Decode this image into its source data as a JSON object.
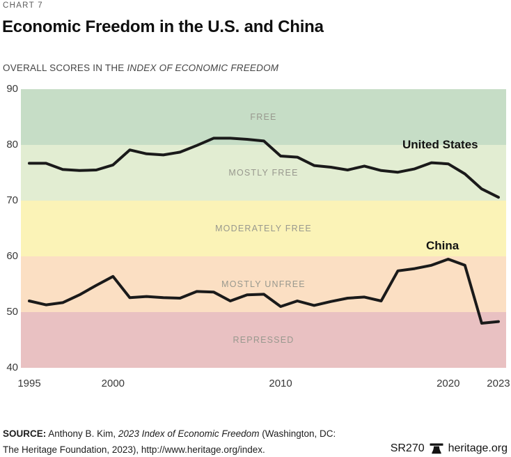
{
  "header": {
    "kicker": "CHART 7",
    "title": "Economic Freedom in the U.S. and China",
    "subtitle_regular": "OVERALL SCORES IN THE ",
    "subtitle_italic": "INDEX OF ECONOMIC FREEDOM"
  },
  "chart_data": {
    "type": "line",
    "title": "Economic Freedom in the U.S. and China",
    "xlabel": "",
    "ylabel": "",
    "xlim": [
      1995,
      2023
    ],
    "ylim": [
      40,
      90
    ],
    "grid": false,
    "legend": "inline-labels",
    "x_ticks": [
      1995,
      2000,
      2010,
      2020,
      2023
    ],
    "y_ticks": [
      90,
      80,
      70,
      60,
      50,
      40
    ],
    "line_color": "#1a1a1a",
    "band_label_color": "#98988e",
    "bands": [
      {
        "label": "FREE",
        "from": 80,
        "to": 90,
        "color": "#c6ddc6"
      },
      {
        "label": "MOSTLY FREE",
        "from": 70,
        "to": 80,
        "color": "#e2edd2"
      },
      {
        "label": "MODERATELY FREE",
        "from": 60,
        "to": 70,
        "color": "#fbf3b7"
      },
      {
        "label": "MOSTLY UNFREE",
        "from": 50,
        "to": 60,
        "color": "#fbdfc3"
      },
      {
        "label": "REPRESSED",
        "from": 40,
        "to": 50,
        "color": "#e9c1c2"
      }
    ],
    "x": [
      1995,
      1996,
      1997,
      1998,
      1999,
      2000,
      2001,
      2002,
      2003,
      2004,
      2005,
      2006,
      2007,
      2008,
      2009,
      2010,
      2011,
      2012,
      2013,
      2014,
      2015,
      2016,
      2017,
      2018,
      2019,
      2020,
      2021,
      2022,
      2023
    ],
    "series": [
      {
        "name": "United States",
        "color": "#1a1a1a",
        "values": [
          76.7,
          76.7,
          75.6,
          75.4,
          75.5,
          76.4,
          79.1,
          78.4,
          78.2,
          78.7,
          79.9,
          81.2,
          81.2,
          81.0,
          80.7,
          78.0,
          77.8,
          76.3,
          76.0,
          75.5,
          76.2,
          75.4,
          75.1,
          75.7,
          76.8,
          76.6,
          74.8,
          72.1,
          70.6
        ]
      },
      {
        "name": "China",
        "color": "#1a1a1a",
        "values": [
          52.0,
          51.3,
          51.7,
          53.1,
          54.8,
          56.4,
          52.6,
          52.8,
          52.6,
          52.5,
          53.7,
          53.6,
          52.0,
          53.1,
          53.2,
          51.0,
          52.0,
          51.2,
          51.9,
          52.5,
          52.7,
          52.0,
          57.4,
          57.8,
          58.4,
          59.5,
          58.4,
          48.0,
          48.3
        ]
      }
    ]
  },
  "footer": {
    "source_label": "SOURCE:",
    "source_pre": " Anthony B. Kim, ",
    "source_italic": "2023 Index of Economic Freedom",
    "source_post": " (Washington, DC:",
    "source_line2": "The Heritage Foundation, 2023), http://www.heritage.org/index.",
    "report_id": "SR270",
    "brand": "heritage.org"
  }
}
